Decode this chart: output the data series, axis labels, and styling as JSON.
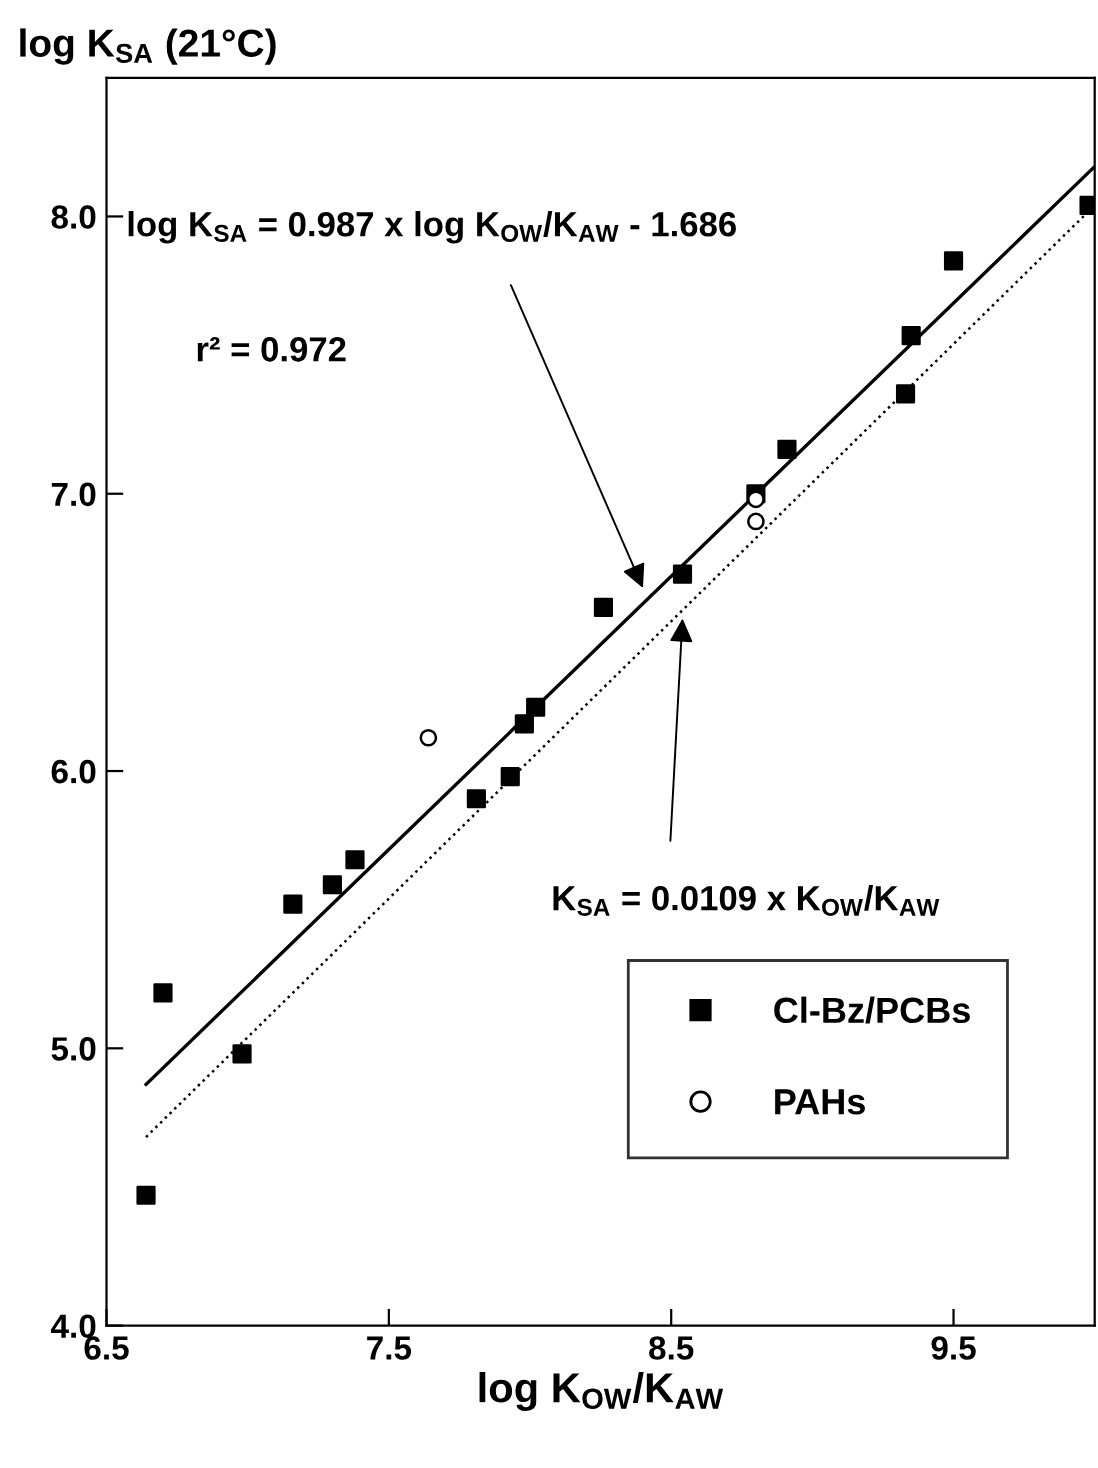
{
  "chart_data": {
    "type": "scatter",
    "ylabel": "log K$_{SA}$ (21°C)",
    "xlabel": "log K$_{OW}$/K$_{AW}$",
    "xlim": [
      6.5,
      10
    ],
    "ylim": [
      4,
      8.5
    ],
    "xticks": [
      {
        "value": 6.5,
        "label": "6.5"
      },
      {
        "value": 7.5,
        "label": "7.5"
      },
      {
        "value": 8.5,
        "label": "8.5"
      },
      {
        "value": 9.5,
        "label": "9.5"
      }
    ],
    "yticks": [
      {
        "value": 4,
        "label": "4.0"
      },
      {
        "value": 5,
        "label": "5.0"
      },
      {
        "value": 6,
        "label": "6.0"
      },
      {
        "value": 7,
        "label": "7.0"
      },
      {
        "value": 8,
        "label": "8.0"
      }
    ],
    "grid": false,
    "legend": "bottom right",
    "series": [
      {
        "name": "Cl-Bz/PCBs",
        "marker": "square",
        "color": "#000000",
        "x": [
          6.64,
          6.7,
          6.98,
          7.16,
          7.3,
          7.38,
          7.81,
          7.93,
          7.98,
          8.02,
          8.26,
          8.54,
          8.8,
          8.91,
          9.33,
          9.35,
          9.5,
          9.98
        ],
        "values": [
          4.47,
          5.2,
          4.98,
          5.52,
          5.59,
          5.68,
          5.9,
          5.98,
          6.17,
          6.23,
          6.59,
          6.71,
          7.0,
          7.16,
          7.36,
          7.57,
          7.84,
          8.04
        ]
      },
      {
        "name": "PAHs",
        "marker": "circle",
        "color": "#000000",
        "x": [
          7.64,
          8.8,
          8.8
        ],
        "values": [
          6.12,
          6.98,
          6.9
        ]
      },
      {
        "type": "line",
        "line_style": "solid",
        "marker": "none",
        "color": "#000000",
        "x": [
          6.64,
          10.0
        ],
        "values": [
          4.87,
          8.18
        ]
      },
      {
        "type": "line",
        "line_style": "dotted",
        "marker": "none",
        "color": "#000000",
        "x": [
          6.64,
          10.0
        ],
        "values": [
          4.68,
          8.04
        ]
      }
    ],
    "annotations": [
      {
        "text": "log K$_{SA}$ = 0.987 x log K$_{OW}$/K$_{AW}$ - 1.686",
        "x": 8.4,
        "y": 6.66
      },
      "r² = 0.972",
      {
        "text": "K$_{SA}$ = 0.0109 x K$_{OW}$/K$_{AW}$",
        "x": 8.54,
        "y": 6.55
      }
    ]
  }
}
